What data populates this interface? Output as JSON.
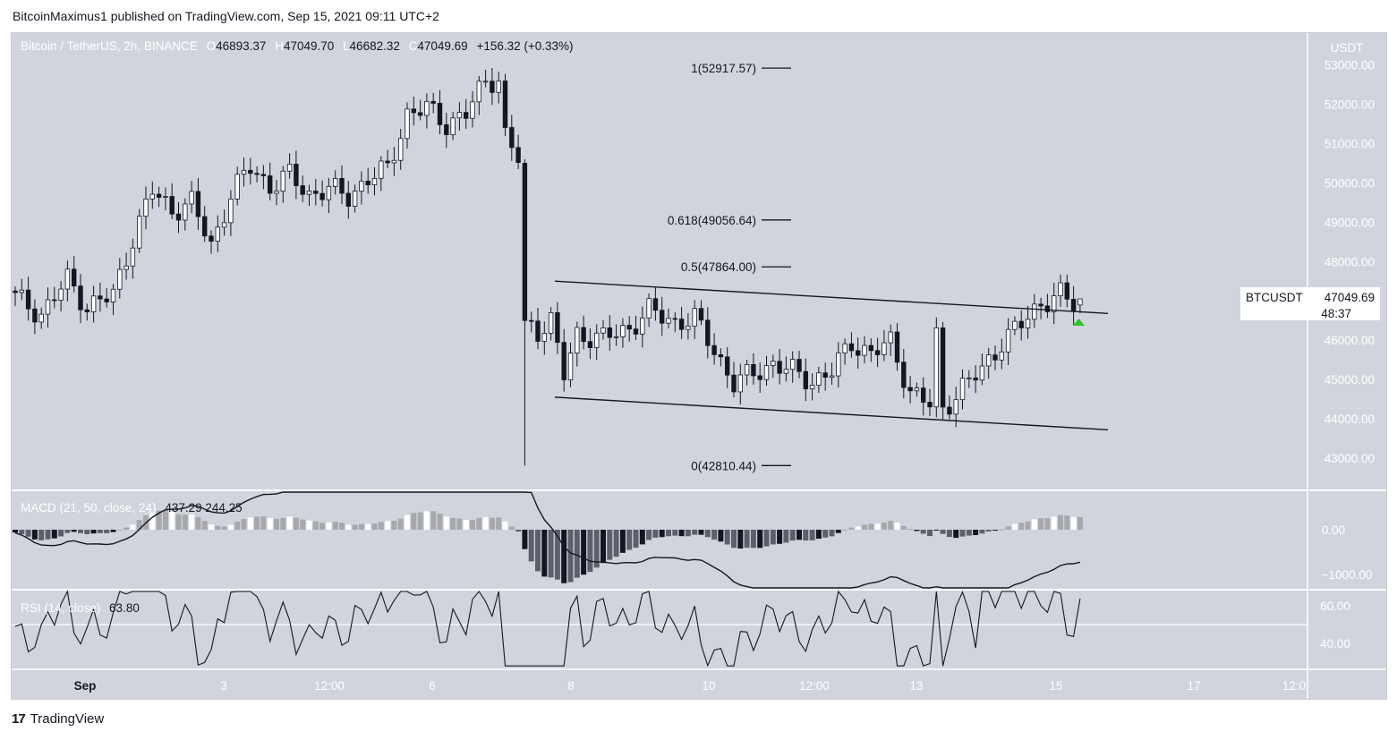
{
  "publisher": "BitcoinMaximus1 published on TradingView.com, Sep 15, 2021 09:11 UTC+2",
  "legend": {
    "symbol": "Bitcoin / TetherUS, 2h, BINANCE",
    "open_key": "O",
    "open": "46893.37",
    "high_key": "H",
    "high": "47049.70",
    "low_key": "L",
    "low": "46682.32",
    "close_key": "C",
    "close": "47049.69",
    "change": "+156.32 (+0.33%)"
  },
  "axis_currency": "USDT",
  "price_ticks": [
    "53000.00",
    "52000.00",
    "51000.00",
    "50000.00",
    "49000.00",
    "48000.00",
    "46000.00",
    "45000.00",
    "44000.00",
    "43000.00"
  ],
  "ticker": {
    "name": "BTCUSDT",
    "price": "47049.69",
    "countdown": "48:37"
  },
  "fib_levels": [
    {
      "label": "1(52917.57)",
      "price": 52917.57
    },
    {
      "label": "0.618(49056.64)",
      "price": 49056.64
    },
    {
      "label": "0.5(47864.00)",
      "price": 47864.0
    },
    {
      "label": "0(42810.44)",
      "price": 42810.44
    }
  ],
  "macd": {
    "label": "MACD (21, 50, close, 24)",
    "values": "437.29  244.25",
    "ticks": [
      "0.00",
      "−1000.00"
    ]
  },
  "rsi": {
    "label": "RSI (14, close)",
    "value": "63.80",
    "ticks": [
      "60.00",
      "40.00"
    ]
  },
  "time_ticks": [
    "Sep",
    "3",
    "12:00",
    "6",
    "8",
    "10",
    "12:00",
    "13",
    "15",
    "17",
    "12:0"
  ],
  "brand": "TradingView",
  "colors": {
    "up": "#ffffff",
    "down": "#131722",
    "pane_bg": "#d1d4dc",
    "panel": "#ffffff",
    "signal": "#26c626"
  },
  "chart_data": {
    "type": "candlestick",
    "title": "Bitcoin / TetherUS, 2h, BINANCE",
    "ylabel": "USDT",
    "ylim": [
      42400,
      53800
    ],
    "timeframe_hours": 2,
    "anchors": [
      {
        "t": 0,
        "p": 47100
      },
      {
        "t": 4,
        "p": 46650
      },
      {
        "t": 8,
        "p": 47550
      },
      {
        "t": 11,
        "p": 46850
      },
      {
        "t": 15,
        "p": 47150
      },
      {
        "t": 18,
        "p": 48600
      },
      {
        "t": 21,
        "p": 49800
      },
      {
        "t": 24,
        "p": 49300
      },
      {
        "t": 27,
        "p": 49500
      },
      {
        "t": 30,
        "p": 48400
      },
      {
        "t": 33,
        "p": 49700
      },
      {
        "t": 36,
        "p": 50400
      },
      {
        "t": 39,
        "p": 49900
      },
      {
        "t": 42,
        "p": 50200
      },
      {
        "t": 45,
        "p": 49700
      },
      {
        "t": 48,
        "p": 49850
      },
      {
        "t": 51,
        "p": 49650
      },
      {
        "t": 54,
        "p": 50100
      },
      {
        "t": 57,
        "p": 50350
      },
      {
        "t": 60,
        "p": 51750
      },
      {
        "t": 63,
        "p": 51900
      },
      {
        "t": 66,
        "p": 51500
      },
      {
        "t": 69,
        "p": 51750
      },
      {
        "t": 72,
        "p": 52600
      },
      {
        "t": 74,
        "p": 52650
      },
      {
        "t": 75,
        "p": 51200
      },
      {
        "t": 77,
        "p": 50600
      },
      {
        "t": 78,
        "p": 46500
      },
      {
        "t": 80,
        "p": 46250
      },
      {
        "t": 82,
        "p": 46500
      },
      {
        "t": 84,
        "p": 45100
      },
      {
        "t": 86,
        "p": 46150
      },
      {
        "t": 90,
        "p": 46050
      },
      {
        "t": 94,
        "p": 46300
      },
      {
        "t": 97,
        "p": 46750
      },
      {
        "t": 101,
        "p": 46450
      },
      {
        "t": 104,
        "p": 46550
      },
      {
        "t": 107,
        "p": 45750
      },
      {
        "t": 110,
        "p": 44900
      },
      {
        "t": 113,
        "p": 45150
      },
      {
        "t": 116,
        "p": 45400
      },
      {
        "t": 119,
        "p": 45200
      },
      {
        "t": 122,
        "p": 44950
      },
      {
        "t": 125,
        "p": 45200
      },
      {
        "t": 128,
        "p": 45950
      },
      {
        "t": 131,
        "p": 45650
      },
      {
        "t": 134,
        "p": 45950
      },
      {
        "t": 137,
        "p": 44700
      },
      {
        "t": 140,
        "p": 44350
      },
      {
        "t": 141,
        "p": 46100
      },
      {
        "t": 142,
        "p": 44250
      },
      {
        "t": 145,
        "p": 44800
      },
      {
        "t": 148,
        "p": 45250
      },
      {
        "t": 151,
        "p": 45950
      },
      {
        "t": 154,
        "p": 46400
      },
      {
        "t": 157,
        "p": 46950
      },
      {
        "t": 160,
        "p": 47150
      },
      {
        "t": 162,
        "p": 46893
      },
      {
        "t": 163,
        "p": 47050
      }
    ],
    "drop_candle": {
      "t": 78,
      "open": 50500,
      "close": 46500,
      "high": 50600,
      "low": 42810
    },
    "trend_lines": [
      {
        "name": "upper",
        "x0_bar": 78,
        "y0": 47500,
        "x1_bar": 163,
        "y1": 46680
      },
      {
        "name": "lower",
        "x0_bar": 78,
        "y0": 44550,
        "x1_bar": 163,
        "y1": 43720
      }
    ],
    "macd_values": [
      437.29,
      244.25
    ],
    "rsi_value": 63.8
  }
}
